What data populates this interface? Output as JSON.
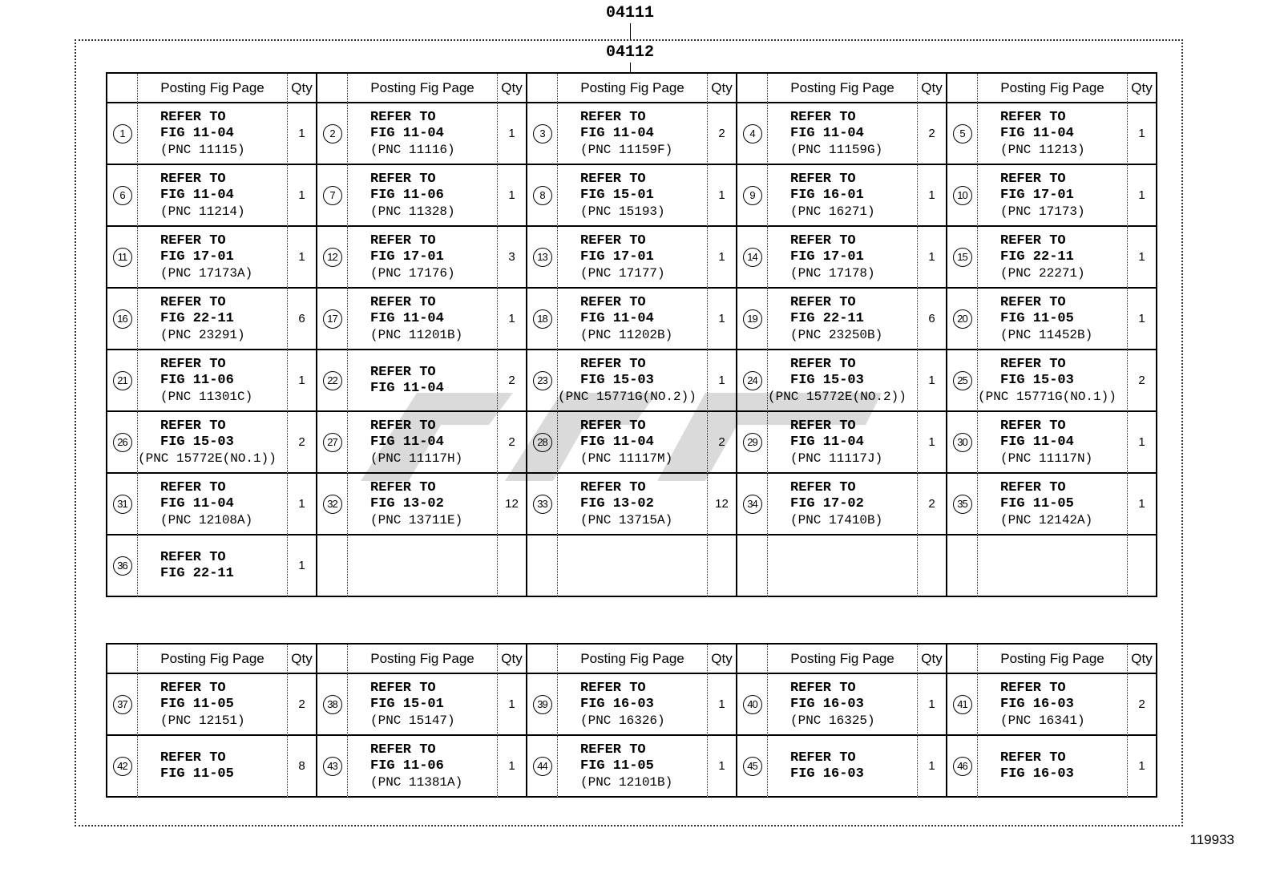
{
  "labels": {
    "top_ref": "04111",
    "sub_ref": "04112",
    "doc_number": "119933"
  },
  "header": {
    "posting": "Posting Fig Page",
    "qty": "Qty"
  },
  "tables": [
    {
      "rows": [
        [
          {
            "no": "1",
            "lines": [
              "REFER TO",
              "FIG 11-04",
              "(PNC 11115)"
            ],
            "qty": "1"
          },
          {
            "no": "2",
            "lines": [
              "REFER TO",
              "FIG 11-04",
              "(PNC 11116)"
            ],
            "qty": "1"
          },
          {
            "no": "3",
            "lines": [
              "REFER TO",
              "FIG 11-04",
              "(PNC 11159F)"
            ],
            "qty": "2"
          },
          {
            "no": "4",
            "lines": [
              "REFER TO",
              "FIG 11-04",
              "(PNC 11159G)"
            ],
            "qty": "2"
          },
          {
            "no": "5",
            "lines": [
              "REFER TO",
              "FIG 11-04",
              "(PNC 11213)"
            ],
            "qty": "1"
          }
        ],
        [
          {
            "no": "6",
            "lines": [
              "REFER TO",
              "FIG 11-04",
              "(PNC 11214)"
            ],
            "qty": "1"
          },
          {
            "no": "7",
            "lines": [
              "REFER TO",
              "FIG 11-06",
              "(PNC 11328)"
            ],
            "qty": "1"
          },
          {
            "no": "8",
            "lines": [
              "REFER TO",
              "FIG 15-01",
              "(PNC 15193)"
            ],
            "qty": "1"
          },
          {
            "no": "9",
            "lines": [
              "REFER TO",
              "FIG 16-01",
              "(PNC 16271)"
            ],
            "qty": "1"
          },
          {
            "no": "10",
            "lines": [
              "REFER TO",
              "FIG 17-01",
              "(PNC 17173)"
            ],
            "qty": "1"
          }
        ],
        [
          {
            "no": "11",
            "lines": [
              "REFER TO",
              "FIG 17-01",
              "(PNC 17173A)"
            ],
            "qty": "1"
          },
          {
            "no": "12",
            "lines": [
              "REFER TO",
              "FIG 17-01",
              "(PNC 17176)"
            ],
            "qty": "3"
          },
          {
            "no": "13",
            "lines": [
              "REFER TO",
              "FIG 17-01",
              "(PNC 17177)"
            ],
            "qty": "1"
          },
          {
            "no": "14",
            "lines": [
              "REFER TO",
              "FIG 17-01",
              "(PNC 17178)"
            ],
            "qty": "1"
          },
          {
            "no": "15",
            "lines": [
              "REFER TO",
              "FIG 22-11",
              "(PNC 22271)"
            ],
            "qty": "1"
          }
        ],
        [
          {
            "no": "16",
            "lines": [
              "REFER TO",
              "FIG 22-11",
              "(PNC 23291)"
            ],
            "qty": "6"
          },
          {
            "no": "17",
            "lines": [
              "REFER TO",
              "FIG 11-04",
              "(PNC 11201B)"
            ],
            "qty": "1"
          },
          {
            "no": "18",
            "lines": [
              "REFER TO",
              "FIG 11-04",
              "(PNC 11202B)"
            ],
            "qty": "1"
          },
          {
            "no": "19",
            "lines": [
              "REFER TO",
              "FIG 22-11",
              "(PNC 23250B)"
            ],
            "qty": "6"
          },
          {
            "no": "20",
            "lines": [
              "REFER TO",
              "FIG 11-05",
              "(PNC 11452B)"
            ],
            "qty": "1"
          }
        ],
        [
          {
            "no": "21",
            "lines": [
              "REFER TO",
              "FIG 11-06",
              "(PNC 11301C)"
            ],
            "qty": "1"
          },
          {
            "no": "22",
            "lines": [
              "REFER TO",
              "FIG 11-04"
            ],
            "qty": "2"
          },
          {
            "no": "23",
            "lines": [
              "REFER TO",
              "FIG 15-03",
              "(PNC 15771G(NO.2))"
            ],
            "qty": "1"
          },
          {
            "no": "24",
            "lines": [
              "REFER TO",
              "FIG 15-03",
              "(PNC 15772E(NO.2))"
            ],
            "qty": "1"
          },
          {
            "no": "25",
            "lines": [
              "REFER TO",
              "FIG 15-03",
              "(PNC 15771G(NO.1))"
            ],
            "qty": "2"
          }
        ],
        [
          {
            "no": "26",
            "lines": [
              "REFER TO",
              "FIG 15-03",
              "(PNC 15772E(NO.1))"
            ],
            "qty": "2"
          },
          {
            "no": "27",
            "lines": [
              "REFER TO",
              "FIG 11-04",
              "(PNC 11117H)"
            ],
            "qty": "2"
          },
          {
            "no": "28",
            "lines": [
              "REFER TO",
              "FIG 11-04",
              "(PNC 11117M)"
            ],
            "qty": "2"
          },
          {
            "no": "29",
            "lines": [
              "REFER TO",
              "FIG 11-04",
              "(PNC 11117J)"
            ],
            "qty": "1"
          },
          {
            "no": "30",
            "lines": [
              "REFER TO",
              "FIG 11-04",
              "(PNC 11117N)"
            ],
            "qty": "1"
          }
        ],
        [
          {
            "no": "31",
            "lines": [
              "REFER TO",
              "FIG 11-04",
              "(PNC 12108A)"
            ],
            "qty": "1"
          },
          {
            "no": "32",
            "lines": [
              "REFER TO",
              "FIG 13-02",
              "(PNC 13711E)"
            ],
            "qty": "12"
          },
          {
            "no": "33",
            "lines": [
              "REFER TO",
              "FIG 13-02",
              "(PNC 13715A)"
            ],
            "qty": "12"
          },
          {
            "no": "34",
            "lines": [
              "REFER TO",
              "FIG 17-02",
              "(PNC 17410B)"
            ],
            "qty": "2"
          },
          {
            "no": "35",
            "lines": [
              "REFER TO",
              "FIG 11-05",
              "(PNC 12142A)"
            ],
            "qty": "1"
          }
        ],
        [
          {
            "no": "36",
            "lines": [
              "REFER TO",
              "FIG 22-11"
            ],
            "qty": "1"
          },
          null,
          null,
          null,
          null
        ]
      ]
    },
    {
      "rows": [
        [
          {
            "no": "37",
            "lines": [
              "REFER TO",
              "FIG 11-05",
              "(PNC 12151)"
            ],
            "qty": "2"
          },
          {
            "no": "38",
            "lines": [
              "REFER TO",
              "FIG 15-01",
              "(PNC 15147)"
            ],
            "qty": "1"
          },
          {
            "no": "39",
            "lines": [
              "REFER TO",
              "FIG 16-03",
              "(PNC 16326)"
            ],
            "qty": "1"
          },
          {
            "no": "40",
            "lines": [
              "REFER TO",
              "FIG 16-03",
              "(PNC 16325)"
            ],
            "qty": "1"
          },
          {
            "no": "41",
            "lines": [
              "REFER TO",
              "FIG 16-03",
              "(PNC 16341)"
            ],
            "qty": "2"
          }
        ],
        [
          {
            "no": "42",
            "lines": [
              "REFER TO",
              "FIG 11-05"
            ],
            "qty": "8"
          },
          {
            "no": "43",
            "lines": [
              "REFER TO",
              "FIG 11-06",
              "(PNC 11381A)"
            ],
            "qty": "1"
          },
          {
            "no": "44",
            "lines": [
              "REFER TO",
              "FIG 11-05",
              "(PNC 12101B)"
            ],
            "qty": "1"
          },
          {
            "no": "45",
            "lines": [
              "REFER TO",
              "FIG 16-03"
            ],
            "qty": "1"
          },
          {
            "no": "46",
            "lines": [
              "REFER TO",
              "FIG 16-03"
            ],
            "qty": "1"
          }
        ]
      ]
    }
  ]
}
